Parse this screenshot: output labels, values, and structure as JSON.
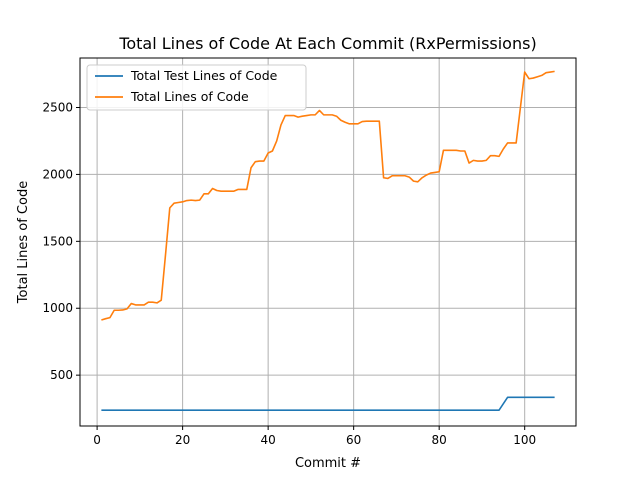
{
  "chart_data": {
    "type": "line",
    "title": "Total Lines of Code At Each Commit (RxPermissions)",
    "xlabel": "Commit #",
    "ylabel": "Total Lines of Code",
    "xlim": [
      -4,
      112
    ],
    "ylim": [
      120,
      2870
    ],
    "xticks": [
      0,
      20,
      40,
      60,
      80,
      100
    ],
    "yticks": [
      500,
      1000,
      1500,
      2000,
      2500
    ],
    "grid": true,
    "legend_position": "upper-left",
    "series": [
      {
        "name": "Total Test Lines of Code",
        "color": "#1f77b4",
        "points": [
          [
            1,
            238
          ],
          [
            94,
            238
          ],
          [
            96,
            334
          ],
          [
            107,
            334
          ]
        ]
      },
      {
        "name": "Total Lines of Code",
        "color": "#ff7f0e",
        "points": [
          [
            1,
            912
          ],
          [
            2,
            922
          ],
          [
            3,
            930
          ],
          [
            4,
            985
          ],
          [
            5,
            985
          ],
          [
            6,
            987
          ],
          [
            7,
            995
          ],
          [
            8,
            1035
          ],
          [
            9,
            1025
          ],
          [
            10,
            1025
          ],
          [
            11,
            1025
          ],
          [
            12,
            1045
          ],
          [
            13,
            1045
          ],
          [
            14,
            1040
          ],
          [
            15,
            1060
          ],
          [
            16,
            1400
          ],
          [
            17,
            1750
          ],
          [
            18,
            1785
          ],
          [
            19,
            1790
          ],
          [
            20,
            1795
          ],
          [
            21,
            1805
          ],
          [
            22,
            1808
          ],
          [
            23,
            1805
          ],
          [
            24,
            1808
          ],
          [
            25,
            1855
          ],
          [
            26,
            1855
          ],
          [
            27,
            1895
          ],
          [
            28,
            1880
          ],
          [
            29,
            1875
          ],
          [
            30,
            1875
          ],
          [
            31,
            1875
          ],
          [
            32,
            1875
          ],
          [
            33,
            1888
          ],
          [
            34,
            1888
          ],
          [
            35,
            1888
          ],
          [
            36,
            2050
          ],
          [
            37,
            2095
          ],
          [
            38,
            2100
          ],
          [
            39,
            2100
          ],
          [
            40,
            2160
          ],
          [
            41,
            2175
          ],
          [
            42,
            2250
          ],
          [
            43,
            2370
          ],
          [
            44,
            2440
          ],
          [
            45,
            2440
          ],
          [
            46,
            2440
          ],
          [
            47,
            2428
          ],
          [
            48,
            2435
          ],
          [
            49,
            2440
          ],
          [
            50,
            2445
          ],
          [
            51,
            2445
          ],
          [
            52,
            2478
          ],
          [
            53,
            2445
          ],
          [
            54,
            2445
          ],
          [
            55,
            2445
          ],
          [
            56,
            2435
          ],
          [
            57,
            2405
          ],
          [
            58,
            2390
          ],
          [
            59,
            2378
          ],
          [
            60,
            2378
          ],
          [
            61,
            2378
          ],
          [
            62,
            2395
          ],
          [
            63,
            2398
          ],
          [
            64,
            2398
          ],
          [
            65,
            2398
          ],
          [
            66,
            2398
          ],
          [
            67,
            1975
          ],
          [
            68,
            1970
          ],
          [
            69,
            1990
          ],
          [
            70,
            1990
          ],
          [
            71,
            1990
          ],
          [
            72,
            1990
          ],
          [
            73,
            1980
          ],
          [
            74,
            1950
          ],
          [
            75,
            1945
          ],
          [
            76,
            1975
          ],
          [
            77,
            1995
          ],
          [
            78,
            2010
          ],
          [
            79,
            2015
          ],
          [
            80,
            2020
          ],
          [
            81,
            2180
          ],
          [
            82,
            2180
          ],
          [
            83,
            2180
          ],
          [
            84,
            2180
          ],
          [
            85,
            2175
          ],
          [
            86,
            2175
          ],
          [
            87,
            2085
          ],
          [
            88,
            2105
          ],
          [
            89,
            2100
          ],
          [
            90,
            2100
          ],
          [
            91,
            2105
          ],
          [
            92,
            2140
          ],
          [
            93,
            2140
          ],
          [
            94,
            2135
          ],
          [
            95,
            2190
          ],
          [
            96,
            2235
          ],
          [
            97,
            2235
          ],
          [
            98,
            2235
          ],
          [
            99,
            2500
          ],
          [
            100,
            2765
          ],
          [
            101,
            2715
          ],
          [
            102,
            2720
          ],
          [
            103,
            2730
          ],
          [
            104,
            2740
          ],
          [
            105,
            2760
          ],
          [
            106,
            2765
          ],
          [
            107,
            2770
          ]
        ]
      }
    ]
  }
}
